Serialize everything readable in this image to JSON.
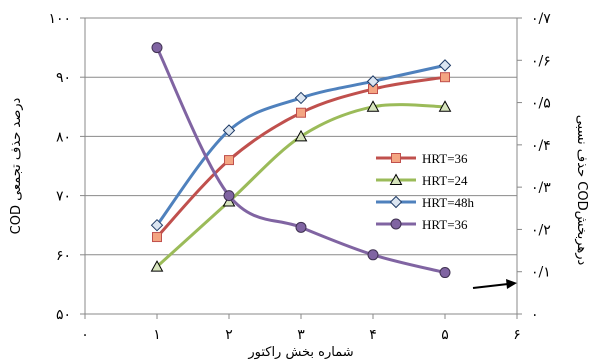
{
  "chart_data": {
    "type": "line",
    "xlabel": "شماره بخش راکتور",
    "ylabel_left": "COD درصد حذف تجمعی",
    "ylabel_right": "حذف نسبی CODدرهربخش",
    "xlim": [
      0,
      6
    ],
    "ylim_left": [
      50,
      100
    ],
    "ylim_right": [
      0,
      0.7
    ],
    "x_ticks": [
      0,
      1,
      2,
      3,
      4,
      5,
      6
    ],
    "x_tick_labels": [
      "۰",
      "۱",
      "۲",
      "۳",
      "۴",
      "۵",
      "۶"
    ],
    "y_left_ticks": [
      50,
      60,
      70,
      80,
      90,
      100
    ],
    "y_left_tick_labels": [
      "۵۰",
      "۶۰",
      "۷۰",
      "۸۰",
      "۹۰",
      "۱۰۰"
    ],
    "y_right_ticks": [
      0,
      0.1,
      0.2,
      0.3,
      0.4,
      0.5,
      0.6,
      0.7
    ],
    "y_right_tick_labels": [
      "۰",
      "۰/۱",
      "۰/۲",
      "۰/۳",
      "۰/۴",
      "۰/۵",
      "۰/۶",
      "۰/۷"
    ],
    "grid": "horizontal",
    "legend_position": "right",
    "series": [
      {
        "name": "HRT=36",
        "axis": "left",
        "marker": "square",
        "color": "#c0504d",
        "x": [
          1,
          2,
          3,
          4,
          5
        ],
        "y": [
          63,
          76,
          84,
          88,
          90
        ]
      },
      {
        "name": "HRT=24",
        "axis": "left",
        "marker": "triangle",
        "color": "#9bbb59",
        "x": [
          1,
          2,
          3,
          4,
          5
        ],
        "y": [
          58,
          69,
          80,
          85,
          85
        ]
      },
      {
        "name": "HRT=48h",
        "axis": "left",
        "marker": "diamond",
        "color": "#4f81bd",
        "x": [
          1,
          2,
          3,
          4,
          5
        ],
        "y": [
          65,
          81,
          86.5,
          89.3,
          92
        ]
      },
      {
        "name": "HRT=36",
        "axis": "right",
        "marker": "circle",
        "color": "#8064a2",
        "x": [
          1,
          2,
          3,
          4,
          5
        ],
        "y": [
          0.63,
          0.28,
          0.205,
          0.14,
          0.098
        ]
      }
    ]
  }
}
